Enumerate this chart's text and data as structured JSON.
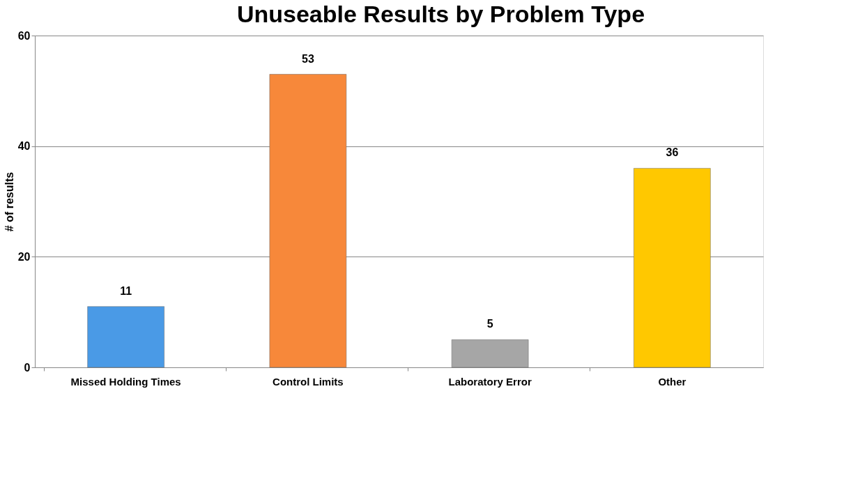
{
  "chart_data": {
    "type": "bar",
    "title": "Unuseable Results by Problem Type",
    "ylabel": "# of results",
    "categories": [
      "Missed Holding Times",
      "Control Limits",
      "Laboratory Error",
      "Other"
    ],
    "values": [
      11,
      53,
      5,
      36
    ],
    "colors": [
      "#4a9ae6",
      "#f7883a",
      "#a6a6a6",
      "#ffc800"
    ],
    "ylim": [
      0,
      60
    ],
    "yticks": [
      0,
      20,
      40,
      60
    ],
    "grid": "y",
    "data_labels": true
  }
}
